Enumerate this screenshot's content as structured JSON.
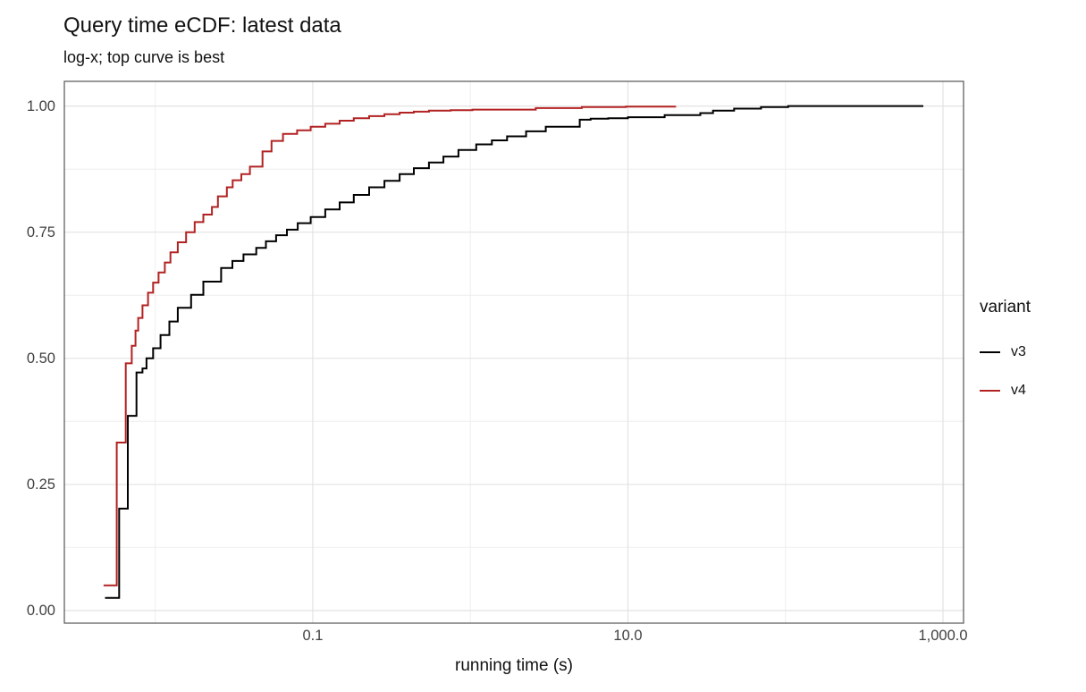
{
  "chart_data": {
    "type": "line",
    "subtype": "ecdf-step",
    "title": "Query time eCDF: latest data",
    "subtitle": "log-x; top curve is best",
    "xlabel": "running time (s)",
    "ylabel": "",
    "x_scale": "log10",
    "xlim": [
      0.00265,
      1350
    ],
    "ylim": [
      -0.025,
      1.049
    ],
    "grid": true,
    "interpolation": "step-after",
    "x_ticks": [
      {
        "v": 0.1,
        "label": "0.1"
      },
      {
        "v": 10,
        "label": "10.0"
      },
      {
        "v": 1000,
        "label": "1,000.0"
      }
    ],
    "x_minor_ticks": [
      0.01,
      1,
      100
    ],
    "y_ticks": [
      {
        "v": 0.0,
        "label": "0.00"
      },
      {
        "v": 0.25,
        "label": "0.25"
      },
      {
        "v": 0.5,
        "label": "0.50"
      },
      {
        "v": 0.75,
        "label": "0.75"
      },
      {
        "v": 1.0,
        "label": "1.00"
      }
    ],
    "y_minor_ticks": [
      0.125,
      0.375,
      0.625,
      0.875
    ],
    "legend": {
      "title": "variant",
      "position": "right"
    },
    "colors": {
      "grid_major": "#e3e3e3",
      "grid_minor": "#eeeeee",
      "panel_border": "#555555",
      "tick_text": "#404040",
      "v3": "#000000",
      "v4": "#b22222"
    },
    "series": [
      {
        "name": "v3",
        "color": "#000000",
        "points": [
          [
            0.0048,
            0.025
          ],
          [
            0.0059,
            0.202
          ],
          [
            0.0067,
            0.386
          ],
          [
            0.0076,
            0.472
          ],
          [
            0.0083,
            0.48
          ],
          [
            0.0088,
            0.5
          ],
          [
            0.0097,
            0.52
          ],
          [
            0.0108,
            0.546
          ],
          [
            0.0123,
            0.573
          ],
          [
            0.0139,
            0.6
          ],
          [
            0.0169,
            0.626
          ],
          [
            0.0202,
            0.652
          ],
          [
            0.0262,
            0.679
          ],
          [
            0.0309,
            0.693
          ],
          [
            0.0363,
            0.706
          ],
          [
            0.0438,
            0.719
          ],
          [
            0.0504,
            0.732
          ],
          [
            0.0585,
            0.744
          ],
          [
            0.0685,
            0.755
          ],
          [
            0.0803,
            0.768
          ],
          [
            0.097,
            0.78
          ],
          [
            0.12,
            0.795
          ],
          [
            0.148,
            0.809
          ],
          [
            0.182,
            0.824
          ],
          [
            0.228,
            0.839
          ],
          [
            0.285,
            0.852
          ],
          [
            0.356,
            0.865
          ],
          [
            0.438,
            0.877
          ],
          [
            0.546,
            0.888
          ],
          [
            0.675,
            0.9
          ],
          [
            0.84,
            0.913
          ],
          [
            1.09,
            0.924
          ],
          [
            1.37,
            0.932
          ],
          [
            1.71,
            0.94
          ],
          [
            2.26,
            0.95
          ],
          [
            3.01,
            0.959
          ],
          [
            4.95,
            0.973
          ],
          [
            5.8,
            0.975
          ],
          [
            7.5,
            0.976
          ],
          [
            10.0,
            0.978
          ],
          [
            17.1,
            0.982
          ],
          [
            28.8,
            0.986
          ],
          [
            34.7,
            0.991
          ],
          [
            47.2,
            0.995
          ],
          [
            70.0,
            0.998
          ],
          [
            104,
            1.0
          ],
          [
            750,
            1.0
          ]
        ]
      },
      {
        "name": "v4",
        "color": "#b22222",
        "points": [
          [
            0.0047,
            0.05
          ],
          [
            0.0057,
            0.333
          ],
          [
            0.0065,
            0.49
          ],
          [
            0.0071,
            0.525
          ],
          [
            0.0075,
            0.555
          ],
          [
            0.0078,
            0.58
          ],
          [
            0.0083,
            0.605
          ],
          [
            0.009,
            0.63
          ],
          [
            0.0097,
            0.65
          ],
          [
            0.0105,
            0.67
          ],
          [
            0.0115,
            0.69
          ],
          [
            0.0125,
            0.71
          ],
          [
            0.0139,
            0.73
          ],
          [
            0.0157,
            0.75
          ],
          [
            0.0178,
            0.77
          ],
          [
            0.0202,
            0.785
          ],
          [
            0.0229,
            0.8
          ],
          [
            0.025,
            0.821
          ],
          [
            0.0285,
            0.839
          ],
          [
            0.031,
            0.853
          ],
          [
            0.0352,
            0.865
          ],
          [
            0.0399,
            0.88
          ],
          [
            0.048,
            0.91
          ],
          [
            0.0547,
            0.931
          ],
          [
            0.0647,
            0.945
          ],
          [
            0.0795,
            0.952
          ],
          [
            0.097,
            0.959
          ],
          [
            0.12,
            0.965
          ],
          [
            0.148,
            0.971
          ],
          [
            0.182,
            0.976
          ],
          [
            0.228,
            0.98
          ],
          [
            0.285,
            0.984
          ],
          [
            0.356,
            0.987
          ],
          [
            0.438,
            0.989
          ],
          [
            0.546,
            0.991
          ],
          [
            0.75,
            0.992
          ],
          [
            1.03,
            0.993
          ],
          [
            2.6,
            0.996
          ],
          [
            5.1,
            0.998
          ],
          [
            9.7,
            0.999
          ],
          [
            20,
            1.0
          ]
        ]
      }
    ]
  }
}
